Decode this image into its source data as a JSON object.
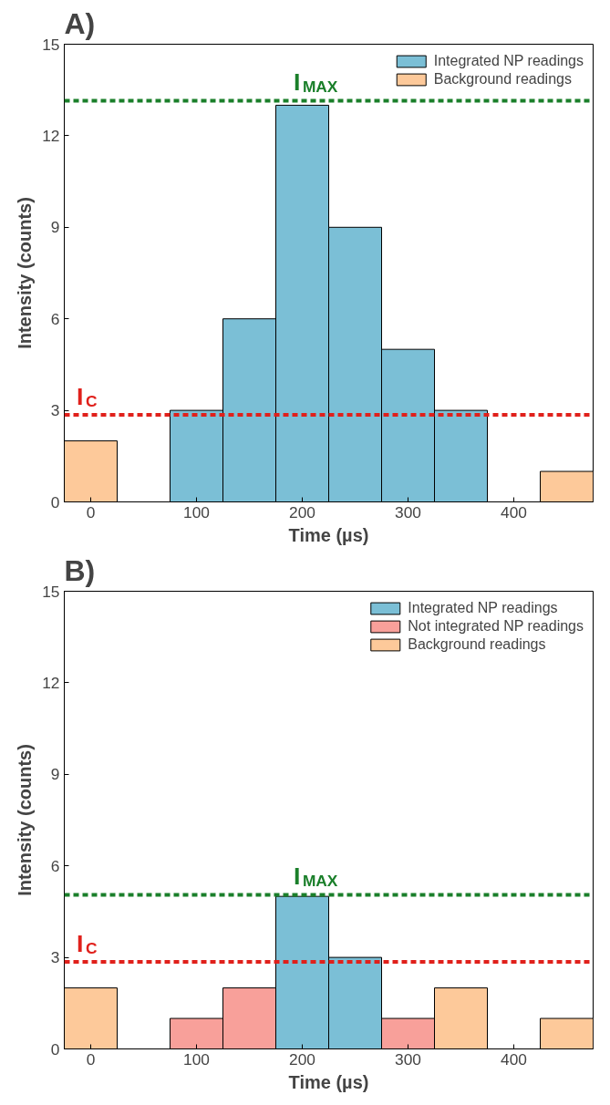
{
  "chart_data": [
    {
      "type": "bar",
      "title": "A)",
      "xlabel": "Time (µs)",
      "ylabel": "Intensity (counts)",
      "xlim": [
        -25,
        475
      ],
      "ylim": [
        0,
        15
      ],
      "xticks": [
        0,
        100,
        200,
        300,
        400
      ],
      "yticks": [
        0,
        3,
        6,
        9,
        12,
        15
      ],
      "grid": false,
      "legend": "top right",
      "series": [
        {
          "name": "Integrated NP readings",
          "color": "#7bbfd6",
          "x": [
            100,
            150,
            200,
            250,
            300,
            350
          ],
          "values": [
            3,
            6,
            13,
            9,
            5,
            3
          ]
        },
        {
          "name": "Background readings",
          "color": "#fdc99a",
          "x": [
            0,
            450
          ],
          "values": [
            2,
            1
          ]
        }
      ],
      "ref_lines": [
        {
          "axis": "y",
          "value": 13.15,
          "label": "I$_{MAX}$",
          "color": "#1a7f2a",
          "line_style": "dashed"
        },
        {
          "axis": "y",
          "value": 2.85,
          "label": "I$_{C}$",
          "color": "#e0201b",
          "line_style": "dashed"
        }
      ]
    },
    {
      "type": "bar",
      "title": "B)",
      "xlabel": "Time (µs)",
      "ylabel": "Intensity (counts)",
      "xlim": [
        -25,
        475
      ],
      "ylim": [
        0,
        15
      ],
      "xticks": [
        0,
        100,
        200,
        300,
        400
      ],
      "yticks": [
        0,
        3,
        6,
        9,
        12,
        15
      ],
      "grid": false,
      "legend": "top right",
      "series": [
        {
          "name": "Integrated NP readings",
          "color": "#7bbfd6",
          "x": [
            200,
            250
          ],
          "values": [
            5,
            3
          ]
        },
        {
          "name": "Not integrated NP readings",
          "color": "#f8a09a",
          "x": [
            100,
            150,
            300
          ],
          "values": [
            1,
            2,
            1
          ]
        },
        {
          "name": "Background readings",
          "color": "#fdc99a",
          "x": [
            0,
            350,
            450
          ],
          "values": [
            2,
            2,
            1
          ]
        }
      ],
      "ref_lines": [
        {
          "axis": "y",
          "value": 5.05,
          "label": "I$_{MAX}$",
          "color": "#1a7f2a",
          "line_style": "dashed"
        },
        {
          "axis": "y",
          "value": 2.85,
          "label": "I$_{C}$",
          "color": "#e0201b",
          "line_style": "dashed"
        }
      ]
    }
  ]
}
